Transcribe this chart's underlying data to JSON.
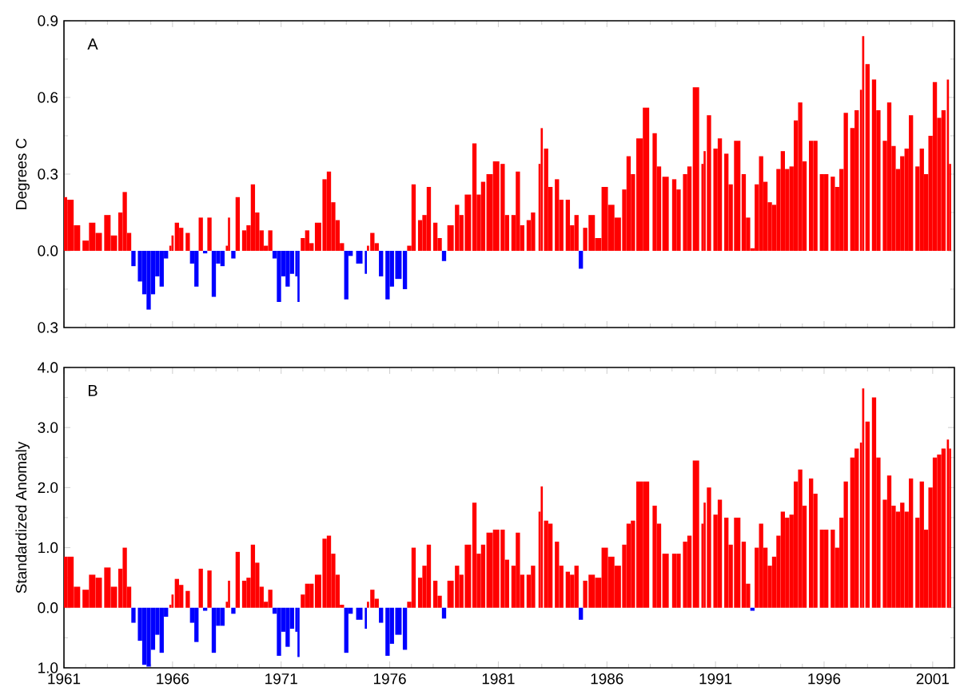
{
  "chart_data": [
    {
      "type": "bar",
      "ylabel": "Degrees C",
      "annotations": [
        "A"
      ],
      "tick_labels": "y",
      "xlim": [
        1961,
        2002
      ],
      "xticks": [
        1961,
        1966,
        1971,
        1976,
        1981,
        1986,
        1991,
        1996,
        2001
      ],
      "ylim": [
        -0.3,
        0.9
      ],
      "yticks": [
        {
          "value": -0.3,
          "label": "0.3"
        },
        {
          "value": 0,
          "label": "0.0"
        },
        {
          "value": 0.3,
          "label": "0.3"
        },
        {
          "value": 0.6,
          "label": "0.6"
        },
        {
          "value": 0.9,
          "label": "0.9"
        }
      ],
      "x": [
        1961.0,
        1961.3,
        1961.6,
        1962.0,
        1962.3,
        1962.6,
        1963.0,
        1963.3,
        1963.6,
        1963.8,
        1964.0,
        1964.2,
        1964.5,
        1964.7,
        1964.9,
        1965.1,
        1965.3,
        1965.5,
        1965.7,
        1965.9,
        1966.0,
        1966.2,
        1966.4,
        1966.7,
        1966.9,
        1967.1,
        1967.3,
        1967.5,
        1967.7,
        1967.9,
        1968.1,
        1968.3,
        1968.5,
        1968.6,
        1968.8,
        1969.0,
        1969.3,
        1969.5,
        1969.7,
        1969.9,
        1970.1,
        1970.3,
        1970.5,
        1970.7,
        1970.9,
        1971.1,
        1971.3,
        1971.5,
        1971.7,
        1971.8,
        1972.0,
        1972.2,
        1972.4,
        1972.7,
        1973.0,
        1973.2,
        1973.4,
        1973.6,
        1973.8,
        1974.0,
        1974.2,
        1974.6,
        1974.9,
        1975.0,
        1975.2,
        1975.4,
        1975.6,
        1975.9,
        1976.1,
        1976.4,
        1976.7,
        1976.9,
        1977.1,
        1977.4,
        1977.6,
        1977.8,
        1978.1,
        1978.3,
        1978.5,
        1978.8,
        1979.1,
        1979.3,
        1979.6,
        1979.9,
        1980.1,
        1980.3,
        1980.6,
        1980.9,
        1981.2,
        1981.4,
        1981.7,
        1981.9,
        1982.1,
        1982.4,
        1982.6,
        1982.9,
        1983.0,
        1983.2,
        1983.4,
        1983.7,
        1983.9,
        1984.2,
        1984.4,
        1984.6,
        1984.8,
        1985.0,
        1985.3,
        1985.6,
        1985.9,
        1986.2,
        1986.5,
        1986.8,
        1987.0,
        1987.2,
        1987.5,
        1987.8,
        1988.2,
        1988.4,
        1988.7,
        1989.1,
        1989.3,
        1989.6,
        1989.8,
        1990.1,
        1990.4,
        1990.5,
        1990.7,
        1991.0,
        1991.2,
        1991.5,
        1991.7,
        1992.0,
        1992.3,
        1992.5,
        1992.7,
        1992.9,
        1993.1,
        1993.3,
        1993.5,
        1993.7,
        1993.9,
        1994.1,
        1994.3,
        1994.5,
        1994.7,
        1994.9,
        1995.1,
        1995.4,
        1995.6,
        1995.9,
        1996.1,
        1996.4,
        1996.6,
        1996.8,
        1997.0,
        1997.3,
        1997.5,
        1997.7,
        1997.8,
        1998.0,
        1998.3,
        1998.5,
        1998.8,
        1999.0,
        1999.2,
        1999.4,
        1999.6,
        1999.8,
        2000.0,
        2000.3,
        2000.5,
        2000.7,
        2000.9,
        2001.1,
        2001.3,
        2001.5,
        2001.7,
        2001.8
      ],
      "series": [
        {
          "values": [
            0.21,
            0.2,
            0.1,
            0.04,
            0.11,
            0.07,
            0.14,
            0.06,
            0.15,
            0.23,
            0.07,
            -0.06,
            -0.12,
            -0.17,
            -0.23,
            -0.17,
            -0.1,
            -0.14,
            -0.03,
            0.02,
            0.06,
            0.11,
            0.09,
            0.07,
            -0.05,
            -0.14,
            0.13,
            -0.01,
            0.13,
            -0.18,
            -0.05,
            -0.06,
            0.02,
            0.13,
            -0.03,
            0.21,
            0.08,
            0.1,
            0.26,
            0.15,
            0.08,
            0.02,
            0.08,
            -0.03,
            -0.2,
            -0.1,
            -0.14,
            -0.09,
            -0.1,
            -0.2,
            0.05,
            0.08,
            0.03,
            0.11,
            0.28,
            0.31,
            0.19,
            0.12,
            0.03,
            -0.19,
            -0.02,
            -0.05,
            -0.09,
            0.02,
            0.07,
            0.03,
            -0.1,
            -0.19,
            -0.14,
            -0.11,
            -0.15,
            0.02,
            0.26,
            0.12,
            0.14,
            0.25,
            0.11,
            0.05,
            -0.04,
            0.1,
            0.18,
            0.14,
            0.22,
            0.42,
            0.22,
            0.27,
            0.3,
            0.35,
            0.34,
            0.14,
            0.14,
            0.31,
            0.1,
            0.12,
            0.15,
            0.34,
            0.48,
            0.4,
            0.25,
            0.28,
            0.2,
            0.2,
            0.1,
            0.14,
            -0.07,
            0.09,
            0.14,
            0.05,
            0.25,
            0.18,
            0.13,
            0.24,
            0.37,
            0.3,
            0.44,
            0.56,
            0.46,
            0.33,
            0.29,
            0.28,
            0.24,
            0.3,
            0.33,
            0.64,
            0.34,
            0.39,
            0.53,
            0.4,
            0.44,
            0.38,
            0.26,
            0.43,
            0.3,
            0.13,
            0.01,
            0.26,
            0.37,
            0.27,
            0.19,
            0.18,
            0.32,
            0.39,
            0.32,
            0.33,
            0.51,
            0.58,
            0.35,
            0.43,
            0.43,
            0.3,
            0.3,
            0.29,
            0.25,
            0.32,
            0.54,
            0.48,
            0.55,
            0.63,
            0.84,
            0.73,
            0.67,
            0.55,
            0.43,
            0.58,
            0.41,
            0.32,
            0.37,
            0.4,
            0.53,
            0.33,
            0.4,
            0.3,
            0.45,
            0.66,
            0.52,
            0.55,
            0.67,
            0.34
          ],
          "colors": [
            "#ff0000",
            "#ff0000",
            "#ff0000",
            "#ff0000",
            "#ff0000",
            "#ff0000",
            "#ff0000",
            "#ff0000",
            "#ff0000",
            "#ff0000",
            "#ff0000",
            "#0000ff",
            "#0000ff",
            "#0000ff",
            "#0000ff",
            "#0000ff",
            "#0000ff",
            "#0000ff",
            "#0000ff",
            "#ff0000",
            "#ff0000",
            "#ff0000",
            "#ff0000",
            "#ff0000",
            "#0000ff",
            "#0000ff",
            "#ff0000",
            "#0000ff",
            "#ff0000",
            "#0000ff",
            "#0000ff",
            "#0000ff",
            "#ff0000",
            "#ff0000",
            "#0000ff",
            "#ff0000",
            "#ff0000",
            "#ff0000",
            "#ff0000",
            "#ff0000",
            "#ff0000",
            "#ff0000",
            "#ff0000",
            "#0000ff",
            "#0000ff",
            "#0000ff",
            "#0000ff",
            "#0000ff",
            "#0000ff",
            "#0000ff",
            "#ff0000",
            "#ff0000",
            "#ff0000",
            "#ff0000",
            "#ff0000",
            "#ff0000",
            "#ff0000",
            "#ff0000",
            "#ff0000",
            "#0000ff",
            "#0000ff",
            "#0000ff",
            "#0000ff",
            "#ff0000",
            "#ff0000",
            "#ff0000",
            "#0000ff",
            "#0000ff",
            "#0000ff",
            "#0000ff",
            "#0000ff",
            "#ff0000",
            "#ff0000",
            "#ff0000",
            "#ff0000",
            "#ff0000",
            "#ff0000",
            "#ff0000",
            "#0000ff",
            "#ff0000",
            "#ff0000",
            "#ff0000",
            "#ff0000",
            "#ff0000",
            "#ff0000",
            "#ff0000",
            "#ff0000",
            "#ff0000",
            "#ff0000",
            "#ff0000",
            "#ff0000",
            "#ff0000",
            "#ff0000",
            "#ff0000",
            "#ff0000",
            "#ff0000",
            "#ff0000",
            "#ff0000",
            "#ff0000",
            "#ff0000",
            "#ff0000",
            "#ff0000",
            "#ff0000",
            "#ff0000",
            "#0000ff",
            "#ff0000",
            "#ff0000",
            "#ff0000",
            "#ff0000",
            "#ff0000",
            "#ff0000",
            "#ff0000",
            "#ff0000",
            "#ff0000",
            "#ff0000",
            "#ff0000",
            "#ff0000",
            "#ff0000",
            "#ff0000",
            "#ff0000",
            "#ff0000",
            "#ff0000",
            "#ff0000",
            "#ff0000",
            "#ff0000",
            "#ff0000",
            "#ff0000",
            "#ff0000",
            "#ff0000",
            "#ff0000",
            "#ff0000",
            "#ff0000",
            "#ff0000",
            "#ff0000",
            "#ff0000",
            "#ff0000",
            "#ff0000",
            "#ff0000",
            "#ff0000",
            "#ff0000",
            "#ff0000",
            "#ff0000",
            "#ff0000",
            "#ff0000",
            "#ff0000",
            "#ff0000",
            "#ff0000",
            "#ff0000",
            "#ff0000",
            "#ff0000",
            "#ff0000",
            "#ff0000",
            "#ff0000",
            "#ff0000",
            "#ff0000",
            "#ff0000",
            "#ff0000",
            "#ff0000",
            "#ff0000",
            "#ff0000",
            "#ff0000",
            "#ff0000",
            "#ff0000",
            "#ff0000",
            "#ff0000",
            "#ff0000",
            "#ff0000",
            "#ff0000",
            "#ff0000",
            "#ff0000",
            "#ff0000",
            "#ff0000",
            "#ff0000",
            "#ff0000",
            "#ff0000",
            "#ff0000",
            "#ff0000",
            "#ff0000"
          ]
        }
      ]
    },
    {
      "type": "bar",
      "ylabel": "Standardized Anomaly",
      "annotations": [
        "B"
      ],
      "xlim": [
        1961,
        2002
      ],
      "xticks": [
        1961,
        1966,
        1971,
        1976,
        1981,
        1986,
        1991,
        1996,
        2001
      ],
      "ylim": [
        -1,
        4
      ],
      "yticks": [
        {
          "value": -1,
          "label": "1.0"
        },
        {
          "value": 0,
          "label": "0.0"
        },
        {
          "value": 1,
          "label": "1.0"
        },
        {
          "value": 2,
          "label": "2.0"
        },
        {
          "value": 3,
          "label": "3.0"
        },
        {
          "value": 4,
          "label": "4.0"
        }
      ],
      "x": [
        1961.0,
        1961.3,
        1961.6,
        1962.0,
        1962.3,
        1962.6,
        1963.0,
        1963.3,
        1963.6,
        1963.8,
        1964.0,
        1964.2,
        1964.5,
        1964.7,
        1964.9,
        1965.1,
        1965.3,
        1965.5,
        1965.7,
        1965.9,
        1966.0,
        1966.2,
        1966.4,
        1966.7,
        1966.9,
        1967.1,
        1967.3,
        1967.5,
        1967.7,
        1967.9,
        1968.1,
        1968.3,
        1968.5,
        1968.6,
        1968.8,
        1969.0,
        1969.3,
        1969.5,
        1969.7,
        1969.9,
        1970.1,
        1970.3,
        1970.5,
        1970.7,
        1970.9,
        1971.1,
        1971.3,
        1971.5,
        1971.7,
        1971.8,
        1972.0,
        1972.2,
        1972.4,
        1972.7,
        1973.0,
        1973.2,
        1973.4,
        1973.6,
        1973.8,
        1974.0,
        1974.2,
        1974.6,
        1974.9,
        1975.0,
        1975.2,
        1975.4,
        1975.6,
        1975.9,
        1976.1,
        1976.4,
        1976.7,
        1976.9,
        1977.1,
        1977.4,
        1977.6,
        1977.8,
        1978.1,
        1978.3,
        1978.5,
        1978.8,
        1979.1,
        1979.3,
        1979.6,
        1979.9,
        1980.1,
        1980.3,
        1980.6,
        1980.9,
        1981.2,
        1981.4,
        1981.7,
        1981.9,
        1982.1,
        1982.4,
        1982.6,
        1982.9,
        1983.0,
        1983.2,
        1983.4,
        1983.7,
        1983.9,
        1984.2,
        1984.4,
        1984.6,
        1984.8,
        1985.0,
        1985.3,
        1985.6,
        1985.9,
        1986.2,
        1986.5,
        1986.8,
        1987.0,
        1987.2,
        1987.5,
        1987.8,
        1988.2,
        1988.4,
        1988.7,
        1989.1,
        1989.3,
        1989.6,
        1989.8,
        1990.1,
        1990.4,
        1990.5,
        1990.7,
        1991.0,
        1991.2,
        1991.5,
        1991.7,
        1992.0,
        1992.3,
        1992.5,
        1992.7,
        1992.9,
        1993.1,
        1993.3,
        1993.5,
        1993.7,
        1993.9,
        1994.1,
        1994.3,
        1994.5,
        1994.7,
        1994.9,
        1995.1,
        1995.4,
        1995.6,
        1995.9,
        1996.1,
        1996.4,
        1996.6,
        1996.8,
        1997.0,
        1997.3,
        1997.5,
        1997.7,
        1997.8,
        1998.0,
        1998.3,
        1998.5,
        1998.8,
        1999.0,
        1999.2,
        1999.4,
        1999.6,
        1999.8,
        2000.0,
        2000.3,
        2000.5,
        2000.7,
        2000.9,
        2001.1,
        2001.3,
        2001.5,
        2001.7,
        2001.8
      ],
      "series": [
        {
          "values": [
            0.85,
            0.85,
            0.35,
            0.3,
            0.55,
            0.5,
            0.67,
            0.35,
            0.65,
            1.0,
            0.35,
            -0.25,
            -0.55,
            -0.95,
            -0.98,
            -0.7,
            -0.45,
            -0.75,
            -0.15,
            0.05,
            0.22,
            0.48,
            0.38,
            0.28,
            -0.25,
            -0.57,
            0.65,
            -0.05,
            0.62,
            -0.75,
            -0.3,
            -0.3,
            0.1,
            0.45,
            -0.1,
            0.93,
            0.45,
            0.5,
            1.05,
            0.75,
            0.35,
            0.1,
            0.3,
            -0.1,
            -0.8,
            -0.4,
            -0.65,
            -0.35,
            -0.4,
            -0.82,
            0.22,
            0.4,
            0.4,
            0.55,
            1.15,
            1.2,
            0.9,
            0.55,
            0.05,
            -0.75,
            -0.1,
            -0.2,
            -0.35,
            0.1,
            0.3,
            0.15,
            -0.25,
            -0.8,
            -0.6,
            -0.45,
            -0.7,
            0.1,
            1.0,
            0.5,
            0.7,
            1.05,
            0.45,
            0.2,
            -0.18,
            0.45,
            0.7,
            0.55,
            1.05,
            1.75,
            0.9,
            1.05,
            1.25,
            1.3,
            1.3,
            0.8,
            0.7,
            1.25,
            0.55,
            0.55,
            0.7,
            1.6,
            2.02,
            1.45,
            1.4,
            1.1,
            0.7,
            0.6,
            0.55,
            0.7,
            -0.2,
            0.45,
            0.55,
            0.5,
            1.0,
            0.85,
            0.7,
            1.05,
            1.4,
            1.45,
            2.1,
            2.1,
            1.7,
            1.4,
            0.9,
            0.9,
            0.9,
            1.1,
            1.2,
            2.45,
            1.4,
            1.75,
            2.0,
            1.55,
            1.8,
            1.5,
            1.05,
            1.5,
            1.1,
            0.4,
            -0.05,
            1.0,
            1.4,
            1.0,
            0.7,
            0.85,
            1.2,
            1.6,
            1.5,
            1.55,
            2.1,
            2.3,
            1.7,
            2.15,
            1.9,
            1.3,
            1.3,
            1.3,
            1.0,
            1.5,
            2.1,
            2.5,
            2.65,
            2.75,
            3.65,
            3.1,
            3.5,
            2.5,
            1.8,
            2.2,
            1.7,
            1.6,
            1.75,
            1.6,
            2.15,
            1.5,
            2.1,
            1.3,
            2.0,
            2.5,
            2.55,
            2.65,
            2.8,
            2.65
          ],
          "colors": [
            "#ff0000",
            "#ff0000",
            "#ff0000",
            "#ff0000",
            "#ff0000",
            "#ff0000",
            "#ff0000",
            "#ff0000",
            "#ff0000",
            "#ff0000",
            "#ff0000",
            "#0000ff",
            "#0000ff",
            "#0000ff",
            "#0000ff",
            "#0000ff",
            "#0000ff",
            "#0000ff",
            "#0000ff",
            "#ff0000",
            "#ff0000",
            "#ff0000",
            "#ff0000",
            "#ff0000",
            "#0000ff",
            "#0000ff",
            "#ff0000",
            "#0000ff",
            "#ff0000",
            "#0000ff",
            "#0000ff",
            "#0000ff",
            "#ff0000",
            "#ff0000",
            "#0000ff",
            "#ff0000",
            "#ff0000",
            "#ff0000",
            "#ff0000",
            "#ff0000",
            "#ff0000",
            "#ff0000",
            "#ff0000",
            "#0000ff",
            "#0000ff",
            "#0000ff",
            "#0000ff",
            "#0000ff",
            "#0000ff",
            "#0000ff",
            "#ff0000",
            "#ff0000",
            "#ff0000",
            "#ff0000",
            "#ff0000",
            "#ff0000",
            "#ff0000",
            "#ff0000",
            "#ff0000",
            "#0000ff",
            "#0000ff",
            "#0000ff",
            "#0000ff",
            "#ff0000",
            "#ff0000",
            "#ff0000",
            "#0000ff",
            "#0000ff",
            "#0000ff",
            "#0000ff",
            "#0000ff",
            "#ff0000",
            "#ff0000",
            "#ff0000",
            "#ff0000",
            "#ff0000",
            "#ff0000",
            "#ff0000",
            "#0000ff",
            "#ff0000",
            "#ff0000",
            "#ff0000",
            "#ff0000",
            "#ff0000",
            "#ff0000",
            "#ff0000",
            "#ff0000",
            "#ff0000",
            "#ff0000",
            "#ff0000",
            "#ff0000",
            "#ff0000",
            "#ff0000",
            "#ff0000",
            "#ff0000",
            "#ff0000",
            "#ff0000",
            "#ff0000",
            "#ff0000",
            "#ff0000",
            "#ff0000",
            "#ff0000",
            "#ff0000",
            "#ff0000",
            "#0000ff",
            "#ff0000",
            "#ff0000",
            "#ff0000",
            "#ff0000",
            "#ff0000",
            "#ff0000",
            "#ff0000",
            "#ff0000",
            "#ff0000",
            "#ff0000",
            "#ff0000",
            "#ff0000",
            "#ff0000",
            "#ff0000",
            "#ff0000",
            "#ff0000",
            "#ff0000",
            "#ff0000",
            "#ff0000",
            "#ff0000",
            "#ff0000",
            "#ff0000",
            "#ff0000",
            "#ff0000",
            "#ff0000",
            "#ff0000",
            "#ff0000",
            "#ff0000",
            "#ff0000",
            "#0000ff",
            "#ff0000",
            "#ff0000",
            "#ff0000",
            "#ff0000",
            "#ff0000",
            "#ff0000",
            "#ff0000",
            "#ff0000",
            "#ff0000",
            "#ff0000",
            "#ff0000",
            "#ff0000",
            "#ff0000",
            "#ff0000",
            "#ff0000",
            "#ff0000",
            "#ff0000",
            "#ff0000",
            "#ff0000",
            "#ff0000",
            "#ff0000",
            "#ff0000",
            "#ff0000",
            "#ff0000",
            "#ff0000",
            "#ff0000",
            "#ff0000",
            "#ff0000",
            "#ff0000",
            "#ff0000",
            "#ff0000",
            "#ff0000",
            "#ff0000",
            "#ff0000",
            "#ff0000",
            "#ff0000",
            "#ff0000",
            "#ff0000",
            "#ff0000",
            "#ff0000",
            "#ff0000",
            "#ff0000",
            "#ff0000"
          ]
        }
      ]
    }
  ]
}
